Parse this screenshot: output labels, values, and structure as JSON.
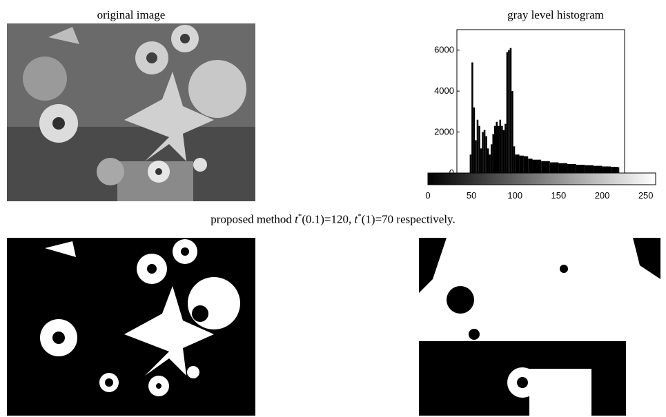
{
  "original_image": {
    "title": "original image"
  },
  "histogram": {
    "title": "gray level histogram",
    "chart_data": {
      "type": "bar",
      "title": "gray level histogram",
      "xlim": [
        0,
        255
      ],
      "ylim": [
        0,
        7000
      ],
      "y_ticks": [
        "0",
        "2000",
        "4000",
        "6000"
      ],
      "x_ticks": [
        "0",
        "50",
        "100",
        "150",
        "200",
        "250"
      ],
      "x": [
        48,
        50,
        52,
        54,
        56,
        58,
        60,
        62,
        64,
        66,
        68,
        70,
        72,
        74,
        76,
        78,
        80,
        82,
        84,
        86,
        88,
        90,
        92,
        94,
        96,
        98,
        100,
        105,
        110,
        115,
        120,
        130,
        140,
        150,
        160,
        170,
        180,
        190,
        200,
        210,
        218
      ],
      "values": [
        900,
        5400,
        3200,
        1600,
        2600,
        2300,
        1200,
        2000,
        2100,
        1800,
        1200,
        900,
        1400,
        1900,
        2300,
        2500,
        2300,
        2600,
        2300,
        2100,
        2400,
        5900,
        6000,
        6100,
        4000,
        1300,
        900,
        850,
        820,
        700,
        650,
        580,
        520,
        480,
        440,
        400,
        380,
        350,
        320,
        300,
        280
      ]
    }
  },
  "caption": {
    "prefix": "proposed method ",
    "t1_label": "t",
    "t1_sup": "*",
    "t1_rest": "(0.1)=120,  ",
    "t2_label": "t",
    "t2_sup": "*",
    "t2_rest": "(1)=70 respectively."
  }
}
